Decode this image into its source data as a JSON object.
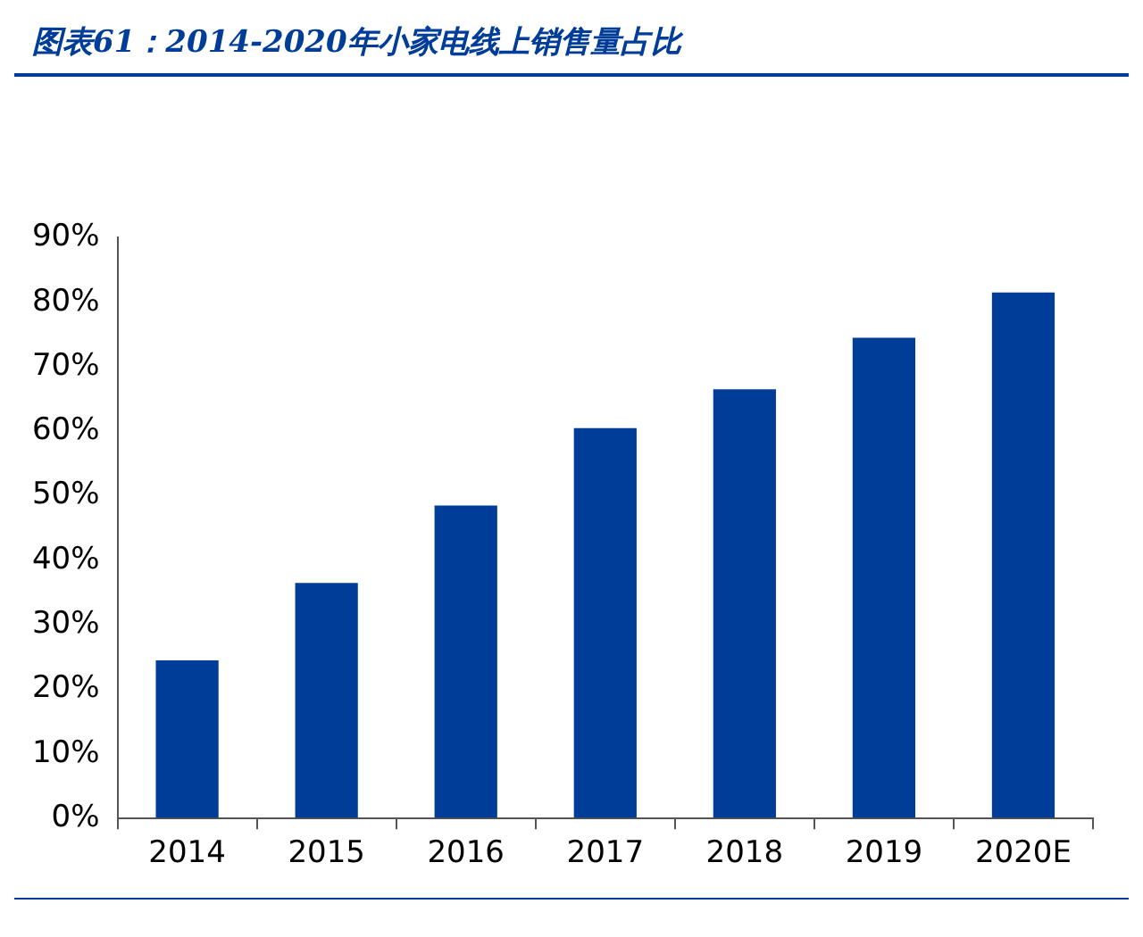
{
  "chart_data": {
    "type": "bar",
    "title": "图表61：2014-2020年小家电线上销售量占比",
    "categories": [
      "2014",
      "2015",
      "2016",
      "2017",
      "2018",
      "2019",
      "2020E"
    ],
    "values": [
      24.5,
      36.5,
      48.5,
      60.5,
      66.5,
      74.5,
      81.5
    ],
    "color": "#003d99",
    "ylim": [
      0,
      90
    ],
    "yticks": [
      {
        "value": 0,
        "label": "0%"
      },
      {
        "value": 10,
        "label": "10%"
      },
      {
        "value": 20,
        "label": "20%"
      },
      {
        "value": 30,
        "label": "30%"
      },
      {
        "value": 40,
        "label": "40%"
      },
      {
        "value": 50,
        "label": "50%"
      },
      {
        "value": 60,
        "label": "60%"
      },
      {
        "value": 70,
        "label": "70%"
      },
      {
        "value": 80,
        "label": "80%"
      },
      {
        "value": 90,
        "label": "90%"
      }
    ],
    "grid": false,
    "legend": false
  }
}
